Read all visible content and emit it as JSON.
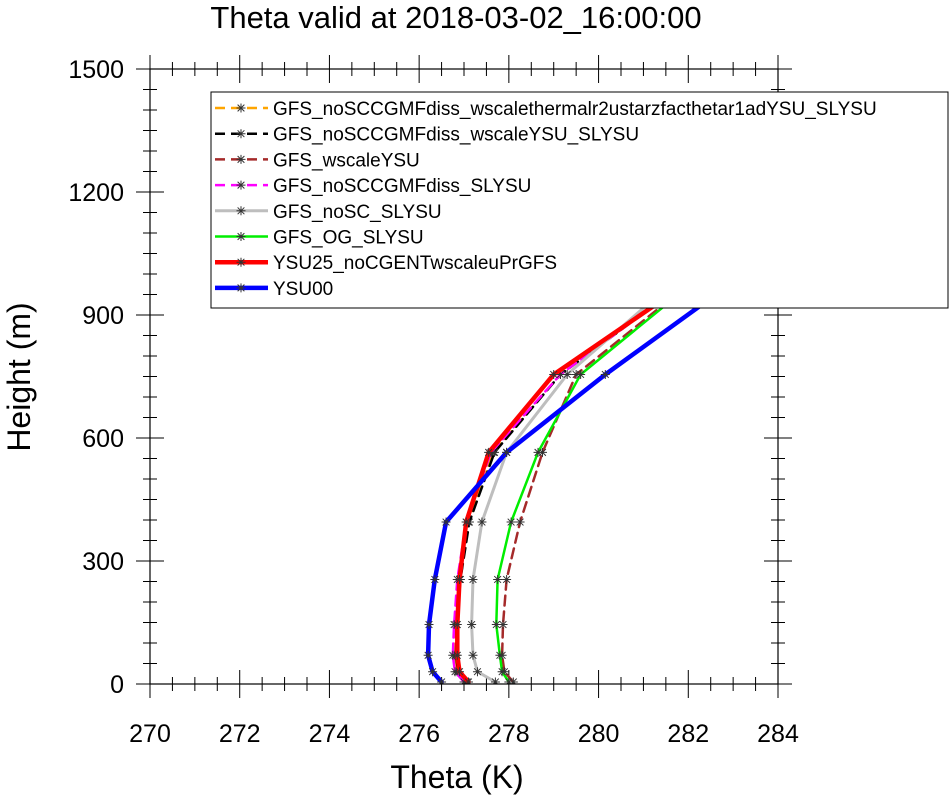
{
  "chart_data": {
    "type": "line",
    "title": "Theta valid at 2018-03-02_16:00:00",
    "xlabel": "Theta (K)",
    "ylabel": "Height (m)",
    "xlim": [
      270,
      284
    ],
    "ylim": [
      0,
      1500
    ],
    "xticks": [
      "270",
      "272",
      "274",
      "276",
      "278",
      "280",
      "282",
      "284"
    ],
    "yticks": [
      "0",
      "300",
      "600",
      "900",
      "1200",
      "1500"
    ],
    "legend_position": "top-right",
    "heights": [
      5,
      30,
      70,
      145,
      255,
      395,
      565,
      755,
      965,
      1150
    ],
    "series": [
      {
        "name": "GFS_noSCCGMFdiss_wscalethermalr2ustarzfacthetar1adYSU_SLYSU",
        "color": "#ffa500",
        "width": 2.5,
        "dash": "10,6",
        "x": [
          277.05,
          276.85,
          276.8,
          276.82,
          276.9,
          277.1,
          277.65,
          279.15,
          281.75,
          284.0
        ]
      },
      {
        "name": "GFS_noSCCGMFdiss_wscaleYSU_SLYSU",
        "color": "#000000",
        "width": 2.5,
        "dash": "10,6",
        "x": [
          277.07,
          276.87,
          276.82,
          276.84,
          276.92,
          277.12,
          277.68,
          279.15,
          281.75,
          283.95
        ]
      },
      {
        "name": "GFS_wscaleYSU",
        "color": "#a52a2a",
        "width": 2.5,
        "dash": "10,6",
        "x": [
          278.1,
          277.9,
          277.85,
          277.87,
          277.95,
          278.25,
          278.75,
          279.5,
          281.9,
          284.0
        ]
      },
      {
        "name": "GFS_noSCCGMFdiss_SLYSU",
        "color": "#ff00ff",
        "width": 2.5,
        "dash": "10,6",
        "x": [
          277.0,
          276.8,
          276.75,
          276.78,
          276.85,
          277.05,
          277.6,
          279.15,
          281.75,
          283.95
        ]
      },
      {
        "name": "GFS_noSC_SLYSU",
        "color": "#bebebe",
        "width": 3,
        "dash": "",
        "x": [
          277.7,
          277.3,
          277.2,
          277.17,
          277.2,
          277.4,
          277.95,
          279.3,
          281.5,
          284.0
        ]
      },
      {
        "name": "GFS_OG_SLYSU",
        "color": "#00ee00",
        "width": 2.5,
        "dash": "",
        "x": [
          278.0,
          277.85,
          277.8,
          277.72,
          277.75,
          278.05,
          278.65,
          279.6,
          281.95,
          284.0
        ]
      },
      {
        "name": "YSU25_noCGENTwscaleuPrGFS",
        "color": "#ff0000",
        "width": 4.5,
        "dash": "",
        "x": [
          277.1,
          276.9,
          276.85,
          276.85,
          276.9,
          277.05,
          277.55,
          279.0,
          281.8,
          284.0
        ]
      },
      {
        "name": "YSU00",
        "color": "#0000ff",
        "width": 4.5,
        "dash": "",
        "x": [
          276.5,
          276.3,
          276.2,
          276.22,
          276.35,
          276.6,
          277.95,
          280.15,
          282.8,
          284.0
        ]
      }
    ],
    "extra_points": {
      "YSU00": {
        "x": 284.0,
        "y": 1090
      }
    }
  }
}
